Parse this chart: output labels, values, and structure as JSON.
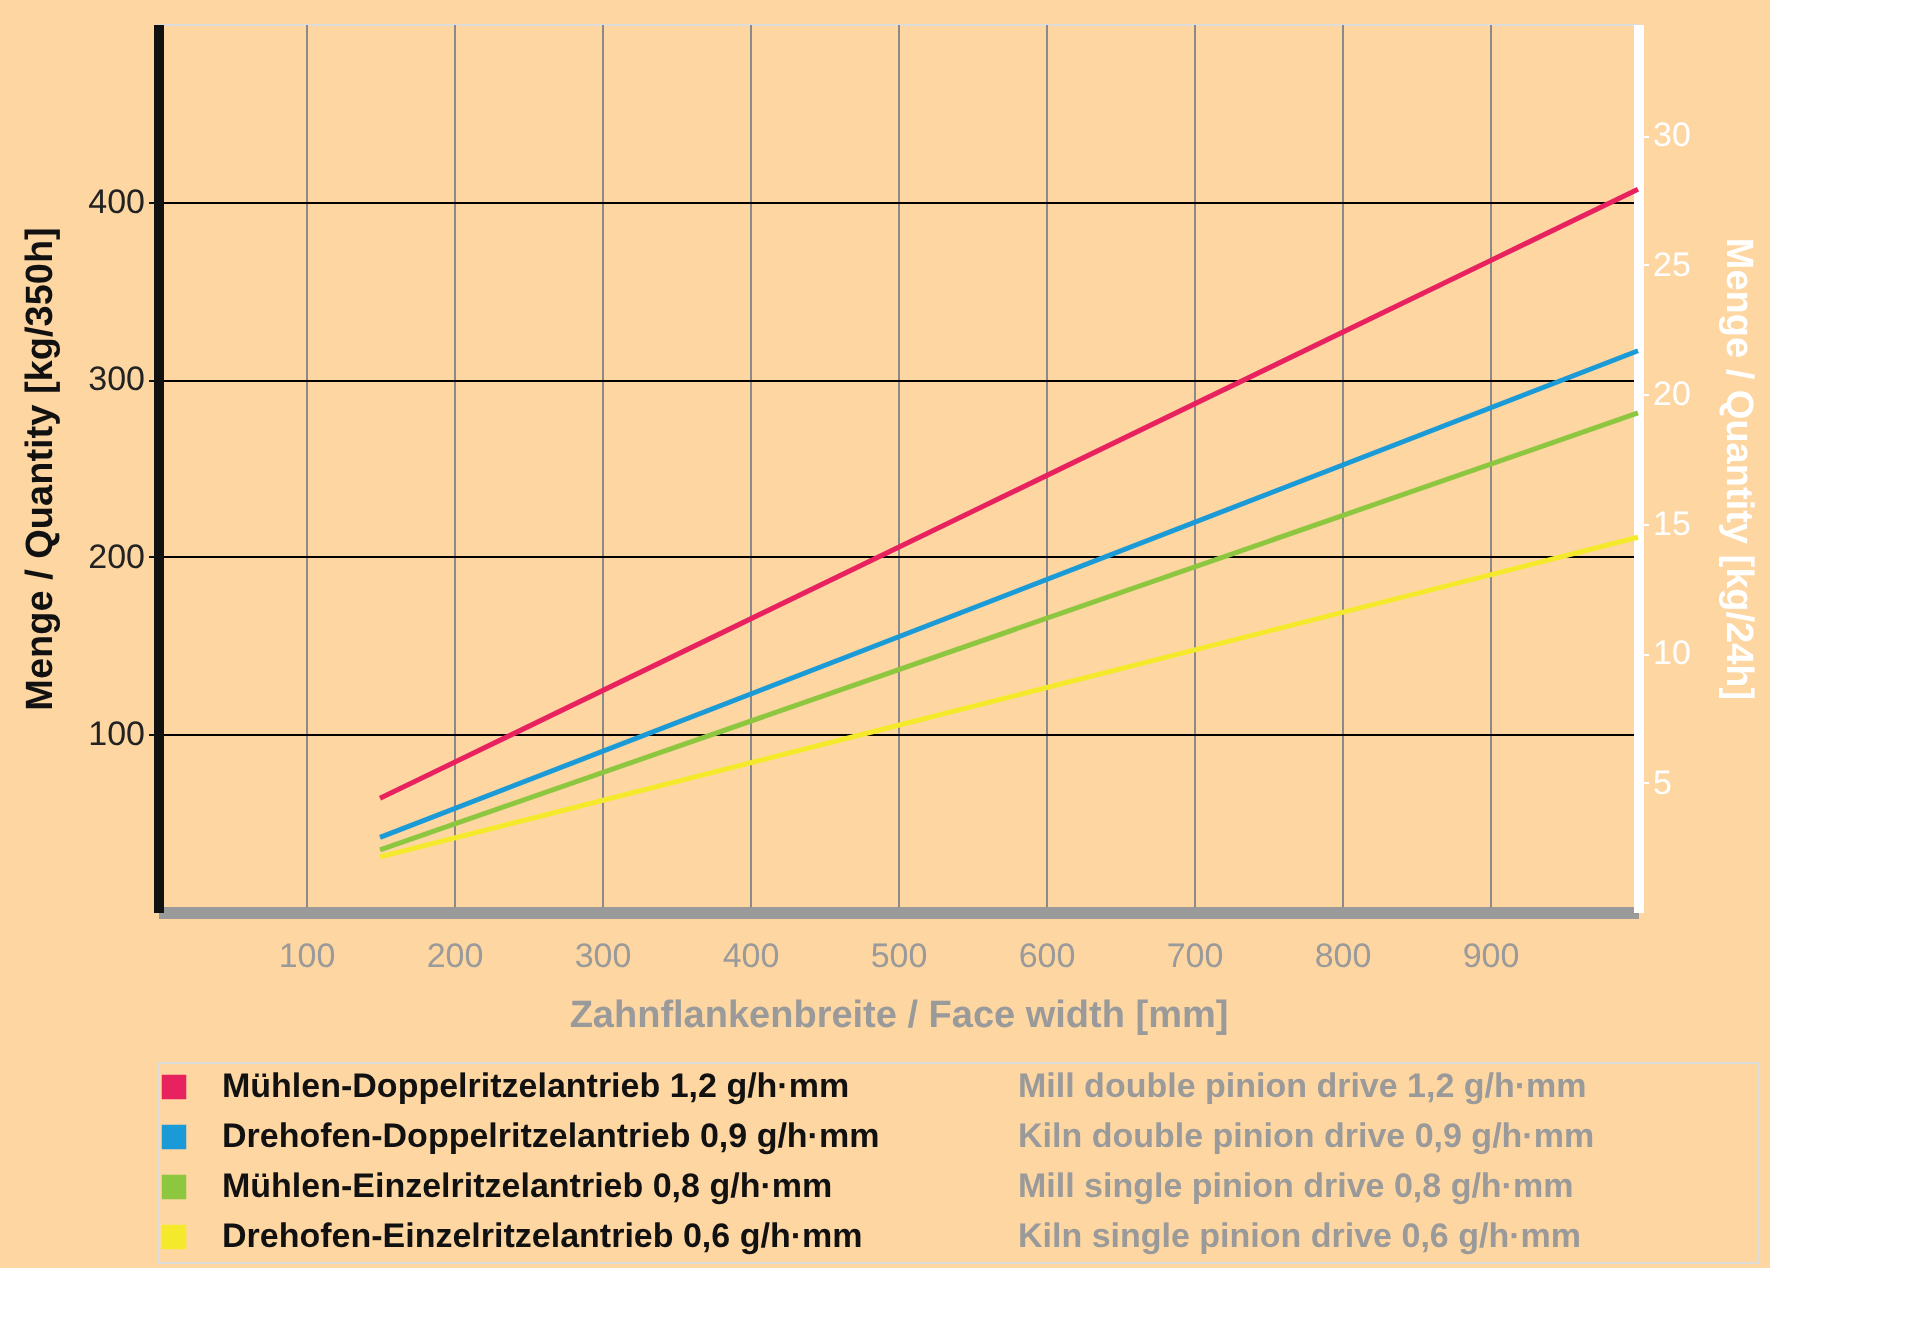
{
  "chart_data": {
    "type": "line",
    "xlabel": "Zahnflankenbreite / Face width [mm]",
    "ylabel": "Menge / Quantity [kg/350h]",
    "y2label": "Menge / Quantity [kg/24h]",
    "x": [
      150,
      1000
    ],
    "series": [
      {
        "name": "Mühlen-Doppelritzelantrieb 1,2 g/h·mm",
        "color": "#e8215f",
        "values": [
          64,
          407
        ]
      },
      {
        "name": "Drehofen-Doppelritzelantrieb 0,9 g/h·mm",
        "color": "#1a9ad6",
        "values": [
          42,
          316
        ]
      },
      {
        "name": "Mühlen-Einzelritzelantrieb 0,8 g/h·mm",
        "color": "#8dc63f",
        "values": [
          35,
          281
        ]
      },
      {
        "name": "Drehofen-Einzelritzelantrieb 0,6 g/h·mm",
        "color": "#f4ea2b",
        "values": [
          31,
          211
        ]
      }
    ],
    "annotations": [
      "Mill double pinion drive 1,2 g/h·mm",
      "Kiln double pinion drive 0,9 g/h·mm",
      "Mill single pinion drive 0,8 g/h·mm",
      "Kiln single pinion drive 0,6 g/h·mm"
    ],
    "xlim": [
      0,
      1000
    ],
    "xticks": [
      100,
      200,
      300,
      400,
      500,
      600,
      700,
      800,
      900
    ],
    "ylim": [
      0,
      500
    ],
    "yticks": [
      100,
      200,
      300,
      400
    ],
    "y2lim": [
      0,
      34.3
    ],
    "y2ticks": [
      5,
      10,
      15,
      20,
      25,
      30
    ],
    "grid": true,
    "legend": "bottom",
    "marker": "none",
    "line_style": "solid"
  }
}
